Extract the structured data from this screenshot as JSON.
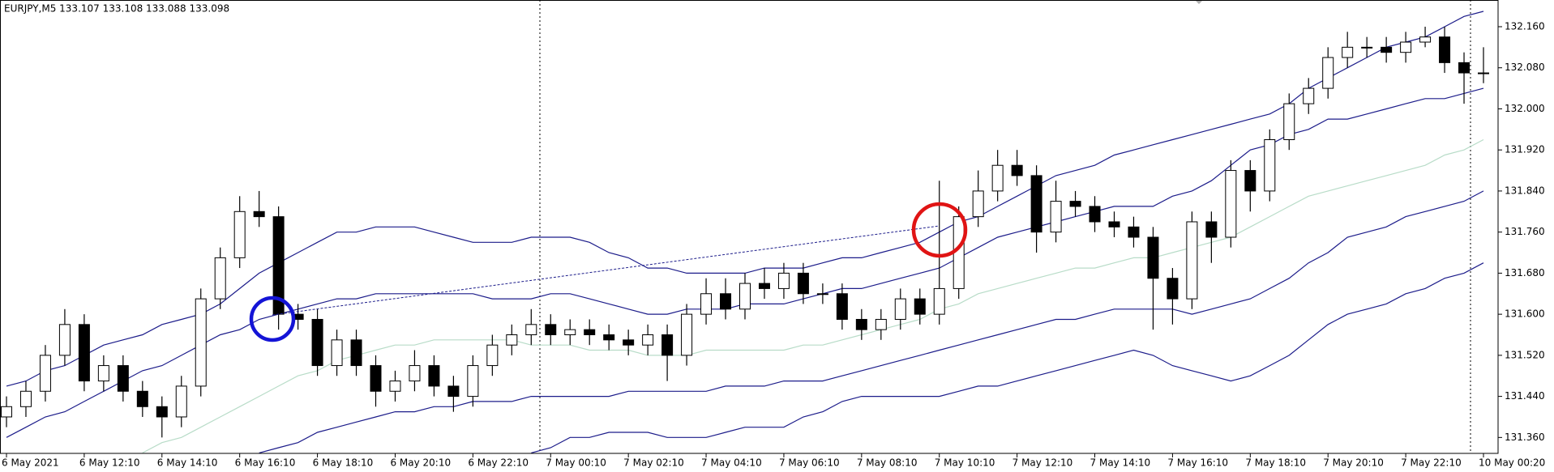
{
  "chart_data": {
    "type": "candlestick",
    "title": "EURJPY,M5  133.107 133.108 133.088 133.098",
    "categories": [
      "6 May 2021",
      null,
      null,
      null,
      "6 May 12:10",
      null,
      null,
      null,
      "6 May 14:10",
      null,
      null,
      null,
      "6 May 16:10",
      null,
      null,
      null,
      "6 May 18:10",
      null,
      null,
      null,
      "6 May 20:10",
      null,
      null,
      null,
      "6 May 22:10",
      null,
      null,
      null,
      "7 May 00:10",
      null,
      null,
      null,
      "7 May 02:10",
      null,
      null,
      null,
      "7 May 04:10",
      null,
      null,
      null,
      "7 May 06:10",
      null,
      null,
      null,
      "7 May 08:10",
      null,
      null,
      null,
      "7 May 10:10",
      null,
      null,
      null,
      "7 May 12:10",
      null,
      null,
      null,
      "7 May 14:10",
      null,
      null,
      null,
      "7 May 16:10",
      null,
      null,
      null,
      "7 May 18:10",
      null,
      null,
      null,
      "7 May 20:10",
      null,
      null,
      null,
      "7 May 22:10",
      null,
      null,
      null,
      "10 May 00:20"
    ],
    "open": [
      131.4,
      131.42,
      131.45,
      131.52,
      131.58,
      131.47,
      131.5,
      131.45,
      131.42,
      131.4,
      131.46,
      131.63,
      131.71,
      131.8,
      131.79,
      131.6,
      131.59,
      131.5,
      131.55,
      131.5,
      131.45,
      131.47,
      131.5,
      131.46,
      131.44,
      131.5,
      131.54,
      131.56,
      131.58,
      131.56,
      131.57,
      131.56,
      131.55,
      131.54,
      131.56,
      131.52,
      131.6,
      131.64,
      131.61,
      131.66,
      131.65,
      131.68,
      131.64,
      131.64,
      131.59,
      131.57,
      131.59,
      131.63,
      131.6,
      131.65,
      131.79,
      131.84,
      131.89,
      131.87,
      131.76,
      131.82,
      131.81,
      131.78,
      131.77,
      131.75,
      131.67,
      131.63,
      131.78,
      131.75,
      131.88,
      131.84,
      131.94,
      132.01,
      132.04,
      132.1,
      132.12,
      132.12,
      132.11,
      132.13,
      132.14,
      132.09,
      132.07
    ],
    "high": [
      131.44,
      131.47,
      131.54,
      131.61,
      131.6,
      131.52,
      131.52,
      131.47,
      131.44,
      131.48,
      131.65,
      131.73,
      131.83,
      131.84,
      131.81,
      131.62,
      131.61,
      131.57,
      131.57,
      131.52,
      131.49,
      131.53,
      131.52,
      131.48,
      131.52,
      131.56,
      131.58,
      131.61,
      131.6,
      131.59,
      131.59,
      131.58,
      131.57,
      131.58,
      131.58,
      131.62,
      131.67,
      131.67,
      131.68,
      131.69,
      131.7,
      131.7,
      131.66,
      131.66,
      131.61,
      131.61,
      131.65,
      131.65,
      131.86,
      131.81,
      131.88,
      131.92,
      131.92,
      131.89,
      131.86,
      131.84,
      131.83,
      131.8,
      131.79,
      131.77,
      131.69,
      131.8,
      131.8,
      131.9,
      131.9,
      131.96,
      132.03,
      132.06,
      132.12,
      132.15,
      132.14,
      132.14,
      132.15,
      132.16,
      132.16,
      132.11,
      132.12
    ],
    "low": [
      131.38,
      131.4,
      131.43,
      131.5,
      131.45,
      131.45,
      131.43,
      131.4,
      131.36,
      131.38,
      131.44,
      131.61,
      131.69,
      131.77,
      131.57,
      131.57,
      131.48,
      131.48,
      131.48,
      131.42,
      131.43,
      131.45,
      131.44,
      131.41,
      131.42,
      131.48,
      131.52,
      131.54,
      131.54,
      131.54,
      131.54,
      131.53,
      131.52,
      131.52,
      131.47,
      131.5,
      131.58,
      131.59,
      131.59,
      131.63,
      131.63,
      131.62,
      131.62,
      131.57,
      131.55,
      131.55,
      131.57,
      131.58,
      131.58,
      131.63,
      131.77,
      131.82,
      131.85,
      131.72,
      131.74,
      131.79,
      131.76,
      131.75,
      131.73,
      131.57,
      131.58,
      131.61,
      131.7,
      131.73,
      131.8,
      131.82,
      131.92,
      131.99,
      132.02,
      132.08,
      132.1,
      132.09,
      132.09,
      132.12,
      132.07,
      132.01,
      132.05
    ],
    "close": [
      131.42,
      131.45,
      131.52,
      131.58,
      131.47,
      131.5,
      131.45,
      131.42,
      131.4,
      131.46,
      131.63,
      131.71,
      131.8,
      131.79,
      131.6,
      131.59,
      131.5,
      131.55,
      131.5,
      131.45,
      131.47,
      131.5,
      131.46,
      131.44,
      131.5,
      131.54,
      131.56,
      131.58,
      131.56,
      131.57,
      131.56,
      131.55,
      131.54,
      131.56,
      131.52,
      131.6,
      131.64,
      131.61,
      131.66,
      131.65,
      131.68,
      131.64,
      131.64,
      131.59,
      131.57,
      131.59,
      131.63,
      131.6,
      131.65,
      131.79,
      131.84,
      131.89,
      131.87,
      131.76,
      131.82,
      131.81,
      131.78,
      131.77,
      131.75,
      131.67,
      131.63,
      131.78,
      131.75,
      131.88,
      131.84,
      131.94,
      132.01,
      132.04,
      132.1,
      132.12,
      132.12,
      132.11,
      132.13,
      132.14,
      132.09,
      132.07,
      132.07
    ],
    "bull_color": "#ffffff",
    "bear_color": "#000000",
    "series": [
      {
        "color": "#1c1c8a",
        "values": [
          131.46,
          131.47,
          131.49,
          131.5,
          131.52,
          131.54,
          131.55,
          131.56,
          131.58,
          131.59,
          131.6,
          131.62,
          131.65,
          131.68,
          131.7,
          131.72,
          131.74,
          131.76,
          131.76,
          131.77,
          131.77,
          131.77,
          131.76,
          131.75,
          131.74,
          131.74,
          131.74,
          131.75,
          131.75,
          131.75,
          131.74,
          131.72,
          131.71,
          131.69,
          131.69,
          131.68,
          131.68,
          131.68,
          131.68,
          131.69,
          131.69,
          131.69,
          131.7,
          131.71,
          131.71,
          131.72,
          131.73,
          131.74,
          131.76,
          131.78,
          131.79,
          131.81,
          131.83,
          131.85,
          131.87,
          131.88,
          131.89,
          131.91,
          131.92,
          131.93,
          131.94,
          131.95,
          131.96,
          131.97,
          131.98,
          131.99,
          132.01,
          132.04,
          132.06,
          132.08,
          132.1,
          132.12,
          132.13,
          132.14,
          132.16,
          132.18,
          132.19
        ]
      },
      {
        "color": "#1c1c8a",
        "values": [
          131.36,
          131.38,
          131.4,
          131.41,
          131.43,
          131.45,
          131.47,
          131.49,
          131.5,
          131.52,
          131.54,
          131.56,
          131.57,
          131.59,
          131.6,
          131.61,
          131.62,
          131.63,
          131.63,
          131.64,
          131.64,
          131.64,
          131.64,
          131.64,
          131.64,
          131.63,
          131.63,
          131.63,
          131.64,
          131.64,
          131.63,
          131.62,
          131.61,
          131.6,
          131.6,
          131.61,
          131.61,
          131.61,
          131.62,
          131.62,
          131.62,
          131.63,
          131.64,
          131.65,
          131.65,
          131.66,
          131.67,
          131.68,
          131.69,
          131.71,
          131.73,
          131.75,
          131.76,
          131.77,
          131.78,
          131.79,
          131.8,
          131.81,
          131.81,
          131.81,
          131.83,
          131.84,
          131.86,
          131.89,
          131.92,
          131.93,
          131.95,
          131.96,
          131.98,
          131.98,
          131.99,
          132.0,
          132.01,
          132.02,
          132.02,
          132.03,
          132.04
        ]
      },
      {
        "color": "#b8dcc8",
        "values": [
          null,
          null,
          null,
          null,
          null,
          null,
          null,
          131.33,
          131.35,
          131.36,
          131.38,
          131.4,
          131.42,
          131.44,
          131.46,
          131.48,
          131.49,
          131.51,
          131.52,
          131.53,
          131.54,
          131.54,
          131.55,
          131.55,
          131.55,
          131.55,
          131.55,
          131.54,
          131.54,
          131.54,
          131.53,
          131.53,
          131.53,
          131.52,
          131.52,
          131.52,
          131.53,
          131.53,
          131.53,
          131.53,
          131.53,
          131.54,
          131.54,
          131.55,
          131.56,
          131.57,
          131.58,
          131.59,
          131.61,
          131.62,
          131.64,
          131.65,
          131.66,
          131.67,
          131.68,
          131.69,
          131.69,
          131.7,
          131.71,
          131.71,
          131.72,
          131.73,
          131.74,
          131.75,
          131.77,
          131.79,
          131.81,
          131.83,
          131.84,
          131.85,
          131.86,
          131.87,
          131.88,
          131.89,
          131.91,
          131.92,
          131.94
        ]
      },
      {
        "color": "#1c1c8a",
        "values": [
          null,
          null,
          null,
          null,
          null,
          null,
          null,
          null,
          null,
          null,
          null,
          null,
          null,
          131.33,
          131.34,
          131.35,
          131.37,
          131.38,
          131.39,
          131.4,
          131.41,
          131.41,
          131.42,
          131.42,
          131.43,
          131.43,
          131.43,
          131.44,
          131.44,
          131.44,
          131.44,
          131.44,
          131.45,
          131.45,
          131.45,
          131.45,
          131.45,
          131.46,
          131.46,
          131.46,
          131.47,
          131.47,
          131.47,
          131.48,
          131.49,
          131.5,
          131.51,
          131.52,
          131.53,
          131.54,
          131.55,
          131.56,
          131.57,
          131.58,
          131.59,
          131.59,
          131.6,
          131.61,
          131.61,
          131.61,
          131.61,
          131.6,
          131.61,
          131.62,
          131.63,
          131.65,
          131.67,
          131.7,
          131.72,
          131.75,
          131.76,
          131.77,
          131.79,
          131.8,
          131.81,
          131.82,
          131.84
        ]
      },
      {
        "color": "#1c1c8a",
        "values": [
          null,
          null,
          null,
          null,
          null,
          null,
          null,
          null,
          null,
          null,
          null,
          null,
          null,
          null,
          null,
          null,
          null,
          null,
          null,
          null,
          null,
          null,
          null,
          null,
          null,
          null,
          null,
          131.33,
          131.34,
          131.36,
          131.36,
          131.37,
          131.37,
          131.37,
          131.36,
          131.36,
          131.36,
          131.37,
          131.38,
          131.38,
          131.38,
          131.4,
          131.41,
          131.43,
          131.44,
          131.44,
          131.44,
          131.44,
          131.44,
          131.45,
          131.46,
          131.46,
          131.47,
          131.48,
          131.49,
          131.5,
          131.51,
          131.52,
          131.53,
          131.52,
          131.5,
          131.49,
          131.48,
          131.47,
          131.48,
          131.5,
          131.52,
          131.55,
          131.58,
          131.6,
          131.61,
          131.62,
          131.64,
          131.65,
          131.67,
          131.68,
          131.7
        ]
      }
    ],
    "ylim": [
      131.329,
      132.212
    ],
    "yticks": [
      {
        "value": 132.16,
        "label": "132.160"
      },
      {
        "value": 132.08,
        "label": "132.080"
      },
      {
        "value": 132.0,
        "label": "132.000"
      },
      {
        "value": 131.92,
        "label": "131.920"
      },
      {
        "value": 131.84,
        "label": "131.840"
      },
      {
        "value": 131.76,
        "label": "131.760"
      },
      {
        "value": 131.68,
        "label": "131.680"
      },
      {
        "value": 131.6,
        "label": "131.600"
      },
      {
        "value": 131.52,
        "label": "131.520"
      },
      {
        "value": 131.44,
        "label": "131.440"
      },
      {
        "value": 131.36,
        "label": "131.360"
      }
    ]
  }
}
